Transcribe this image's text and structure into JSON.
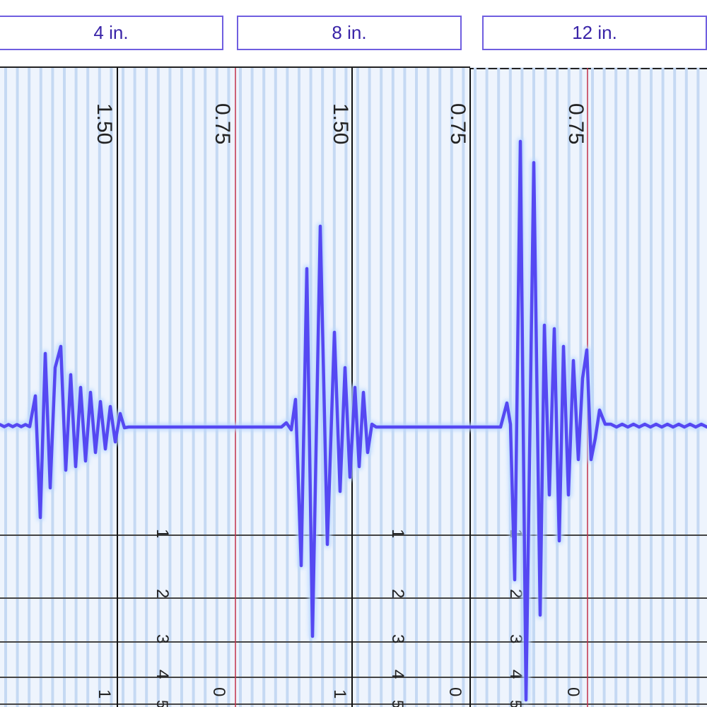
{
  "labels": [
    "4 in.",
    "8 in.",
    "12 in."
  ],
  "scale_labels": {
    "panel_0": {
      "left": "1.50",
      "right": "0.75"
    },
    "panel_1": {
      "left": "1.50",
      "right": "0.75"
    },
    "panel_2": {
      "left": "0.75"
    }
  },
  "bottom_digits": [
    "1",
    "2",
    "3",
    "4",
    "5"
  ],
  "edge_digits": {
    "left": "1",
    "right": "0"
  },
  "colors": {
    "trace": "#5548f2",
    "trace_glow": "#b9d8ff",
    "grid_stripe": "#c5d9f3",
    "grid_bg": "#eef4fd",
    "divider": "#111111",
    "divider_red": "#c0304a",
    "label_border": "#6f5ee0",
    "label_text": "#3a24a8"
  }
}
